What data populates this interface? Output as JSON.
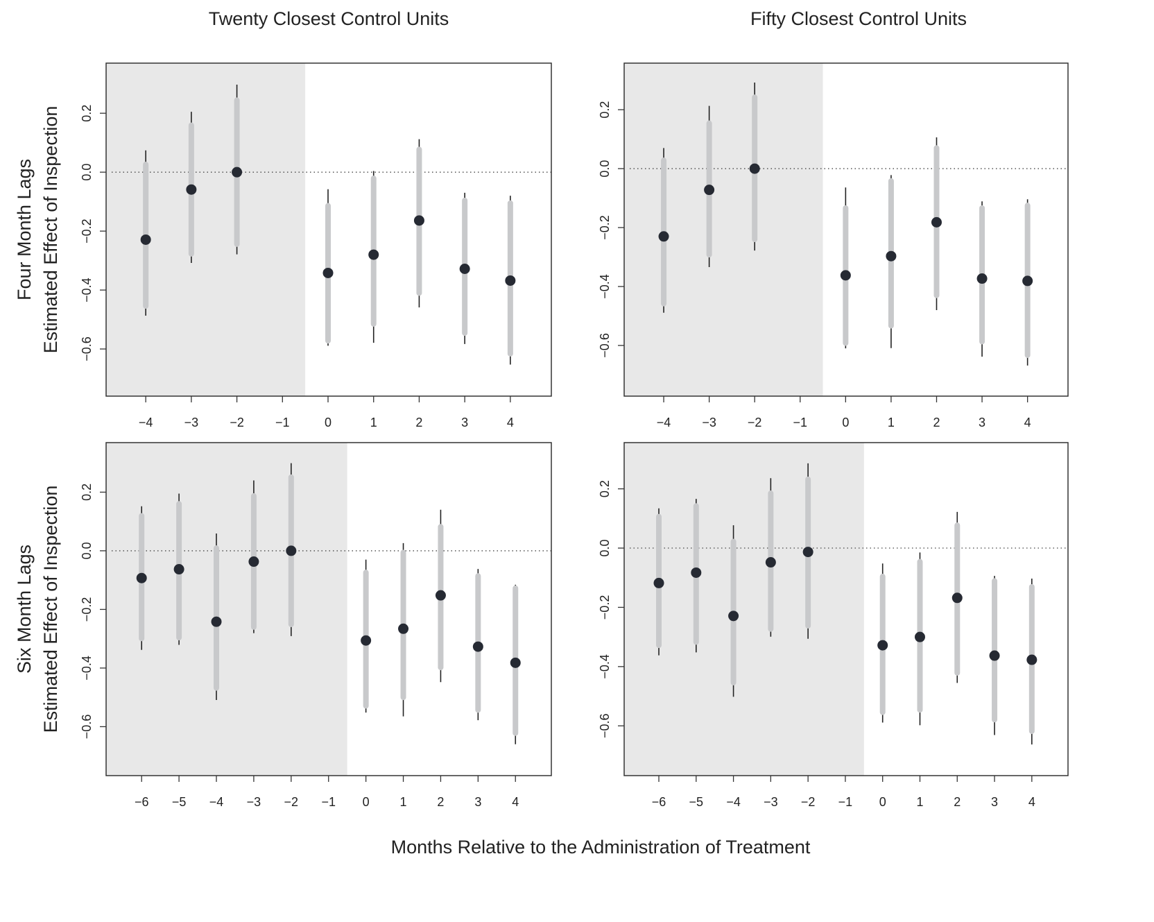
{
  "figure": {
    "col_titles": [
      "Twenty Closest Control Units",
      "Fifty Closest Control Units"
    ],
    "row_labels": [
      "Four Month Lags",
      "Six Month Lags"
    ],
    "ylabel": "Estimated Effect of Inspection",
    "xlabel": "Months Relative to the Administration of Treatment"
  },
  "colors": {
    "shade": "#e8e8e8",
    "thick_interval": "#c8c9cb",
    "thin_interval": "#222222",
    "point": "#262a33",
    "reference_line": "#444444"
  },
  "chart_data": [
    {
      "type": "scatter",
      "title": "Twenty Closest Control Units",
      "row": "Four Month Lags",
      "xlim": [
        -4.87,
        4.9
      ],
      "ylim": [
        -0.76,
        0.37
      ],
      "xticks": [
        -4,
        -3,
        -2,
        -1,
        0,
        1,
        2,
        3,
        4
      ],
      "yticks": [
        0.2,
        0.0,
        -0.2,
        -0.4,
        -0.6
      ],
      "ytick_labels": [
        "0.2",
        "0.0",
        "−0.2",
        "−0.4",
        "−0.6"
      ],
      "pre_treatment_shaded_until": -0.5,
      "reference_y": 0,
      "points": [
        {
          "x": -4,
          "est": -0.229,
          "inner": [
            -0.454,
            0.026
          ],
          "outer": [
            -0.487,
            0.074
          ]
        },
        {
          "x": -3,
          "est": -0.059,
          "inner": [
            -0.277,
            0.159
          ],
          "outer": [
            -0.308,
            0.205
          ]
        },
        {
          "x": -2,
          "est": 0.0,
          "inner": [
            -0.244,
            0.244
          ],
          "outer": [
            -0.279,
            0.297
          ]
        },
        {
          "x": 0,
          "est": -0.342,
          "inner": [
            -0.572,
            -0.114
          ],
          "outer": [
            -0.589,
            -0.058
          ]
        },
        {
          "x": 1,
          "est": -0.28,
          "inner": [
            -0.515,
            -0.021
          ],
          "outer": [
            -0.579,
            0.004
          ]
        },
        {
          "x": 2,
          "est": -0.164,
          "inner": [
            -0.41,
            0.077
          ],
          "outer": [
            -0.459,
            0.112
          ]
        },
        {
          "x": 3,
          "est": -0.328,
          "inner": [
            -0.546,
            -0.096
          ],
          "outer": [
            -0.583,
            -0.07
          ]
        },
        {
          "x": 4,
          "est": -0.368,
          "inner": [
            -0.616,
            -0.105
          ],
          "outer": [
            -0.653,
            -0.08
          ]
        }
      ]
    },
    {
      "type": "scatter",
      "title": "Fifty Closest Control Units",
      "row": "Four Month Lags",
      "xlim": [
        -4.87,
        4.89
      ],
      "ylim": [
        -0.772,
        0.358
      ],
      "xticks": [
        -4,
        -3,
        -2,
        -1,
        0,
        1,
        2,
        3,
        4
      ],
      "yticks": [
        0.2,
        0.0,
        -0.2,
        -0.4,
        -0.6
      ],
      "ytick_labels": [
        "0.2",
        "0.0",
        "−0.2",
        "−0.4",
        "−0.6"
      ],
      "pre_treatment_shaded_until": -0.5,
      "reference_y": 0,
      "points": [
        {
          "x": -4,
          "est": -0.23,
          "inner": [
            -0.458,
            0.028
          ],
          "outer": [
            -0.489,
            0.07
          ]
        },
        {
          "x": -3,
          "est": -0.072,
          "inner": [
            -0.292,
            0.154
          ],
          "outer": [
            -0.334,
            0.213
          ]
        },
        {
          "x": -2,
          "est": 0.0,
          "inner": [
            -0.24,
            0.242
          ],
          "outer": [
            -0.278,
            0.292
          ]
        },
        {
          "x": 0,
          "est": -0.362,
          "inner": [
            -0.592,
            -0.134
          ],
          "outer": [
            -0.61,
            -0.064
          ]
        },
        {
          "x": 1,
          "est": -0.297,
          "inner": [
            -0.533,
            -0.042
          ],
          "outer": [
            -0.609,
            -0.022
          ]
        },
        {
          "x": 2,
          "est": -0.182,
          "inner": [
            -0.43,
            0.07
          ],
          "outer": [
            -0.48,
            0.106
          ]
        },
        {
          "x": 3,
          "est": -0.373,
          "inner": [
            -0.587,
            -0.134
          ],
          "outer": [
            -0.638,
            -0.111
          ]
        },
        {
          "x": 4,
          "est": -0.381,
          "inner": [
            -0.633,
            -0.125
          ],
          "outer": [
            -0.668,
            -0.104
          ]
        }
      ]
    },
    {
      "type": "scatter",
      "title": "Twenty Closest Control Units",
      "row": "Six Month Lags",
      "xlim": [
        -6.95,
        4.96
      ],
      "ylim": [
        -0.767,
        0.369
      ],
      "xticks": [
        -6,
        -5,
        -4,
        -3,
        -2,
        -1,
        0,
        1,
        2,
        3,
        4
      ],
      "yticks": [
        0.2,
        0.0,
        -0.2,
        -0.4,
        -0.6
      ],
      "ytick_labels": [
        "0.2",
        "0.0",
        "−0.2",
        "−0.4",
        "−0.6"
      ],
      "pre_treatment_shaded_until": -0.5,
      "reference_y": 0,
      "points": [
        {
          "x": -6,
          "est": -0.093,
          "inner": [
            -0.299,
            0.119
          ],
          "outer": [
            -0.338,
            0.152
          ]
        },
        {
          "x": -5,
          "est": -0.063,
          "inner": [
            -0.296,
            0.16
          ],
          "outer": [
            -0.321,
            0.195
          ]
        },
        {
          "x": -4,
          "est": -0.242,
          "inner": [
            -0.468,
            0.009
          ],
          "outer": [
            -0.509,
            0.059
          ]
        },
        {
          "x": -3,
          "est": -0.037,
          "inner": [
            -0.26,
            0.187
          ],
          "outer": [
            -0.281,
            0.24
          ]
        },
        {
          "x": -2,
          "est": 0.0,
          "inner": [
            -0.251,
            0.251
          ],
          "outer": [
            -0.291,
            0.299
          ]
        },
        {
          "x": 0,
          "est": -0.306,
          "inner": [
            -0.529,
            -0.074
          ],
          "outer": [
            -0.552,
            -0.03
          ]
        },
        {
          "x": 1,
          "est": -0.266,
          "inner": [
            -0.5,
            -0.006
          ],
          "outer": [
            -0.565,
            0.026
          ]
        },
        {
          "x": 2,
          "est": -0.152,
          "inner": [
            -0.398,
            0.082
          ],
          "outer": [
            -0.448,
            0.14
          ]
        },
        {
          "x": 3,
          "est": -0.327,
          "inner": [
            -0.543,
            -0.086
          ],
          "outer": [
            -0.578,
            -0.062
          ]
        },
        {
          "x": 4,
          "est": -0.382,
          "inner": [
            -0.622,
            -0.128
          ],
          "outer": [
            -0.66,
            -0.116
          ]
        }
      ]
    },
    {
      "type": "scatter",
      "title": "Fifty Closest Control Units",
      "row": "Six Month Lags",
      "xlim": [
        -6.93,
        4.97
      ],
      "ylim": [
        -0.768,
        0.356
      ],
      "xticks": [
        -6,
        -5,
        -4,
        -3,
        -2,
        -1,
        0,
        1,
        2,
        3,
        4
      ],
      "yticks": [
        0.2,
        0.0,
        -0.2,
        -0.4,
        -0.6
      ],
      "ytick_labels": [
        "0.2",
        "0.0",
        "−0.2",
        "−0.4",
        "−0.6"
      ],
      "pre_treatment_shaded_until": -0.5,
      "reference_y": 0,
      "points": [
        {
          "x": -6,
          "est": -0.118,
          "inner": [
            -0.328,
            0.106
          ],
          "outer": [
            -0.362,
            0.134
          ]
        },
        {
          "x": -5,
          "est": -0.083,
          "inner": [
            -0.317,
            0.142
          ],
          "outer": [
            -0.352,
            0.166
          ]
        },
        {
          "x": -4,
          "est": -0.229,
          "inner": [
            -0.454,
            0.022
          ],
          "outer": [
            -0.502,
            0.077
          ]
        },
        {
          "x": -3,
          "est": -0.048,
          "inner": [
            -0.273,
            0.185
          ],
          "outer": [
            -0.299,
            0.236
          ]
        },
        {
          "x": -2,
          "est": -0.013,
          "inner": [
            -0.262,
            0.232
          ],
          "outer": [
            -0.306,
            0.286
          ]
        },
        {
          "x": 0,
          "est": -0.328,
          "inner": [
            -0.554,
            -0.096
          ],
          "outer": [
            -0.589,
            -0.052
          ]
        },
        {
          "x": 1,
          "est": -0.3,
          "inner": [
            -0.546,
            -0.046
          ],
          "outer": [
            -0.598,
            -0.015
          ]
        },
        {
          "x": 2,
          "est": -0.168,
          "inner": [
            -0.421,
            0.077
          ],
          "outer": [
            -0.455,
            0.122
          ]
        },
        {
          "x": 3,
          "est": -0.363,
          "inner": [
            -0.579,
            -0.111
          ],
          "outer": [
            -0.631,
            -0.094
          ]
        },
        {
          "x": 4,
          "est": -0.377,
          "inner": [
            -0.618,
            -0.131
          ],
          "outer": [
            -0.663,
            -0.103
          ]
        }
      ]
    }
  ]
}
